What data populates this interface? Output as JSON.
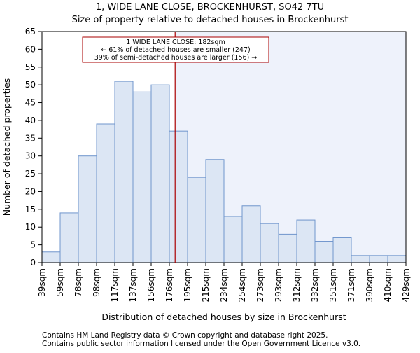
{
  "chart_data": {
    "type": "bar",
    "title": "1, WIDE LANE CLOSE, BROCKENHURST, SO42 7TU",
    "subtitle": "Size of property relative to detached houses in Brockenhurst",
    "xlabel": "Distribution of detached houses by size in Brockenhurst",
    "ylabel": "Number of detached properties",
    "bin_edges": [
      39,
      59,
      78,
      98,
      117,
      137,
      156,
      176,
      195,
      215,
      234,
      254,
      273,
      293,
      312,
      332,
      351,
      371,
      390,
      410,
      429
    ],
    "tick_labels": [
      "39sqm",
      "59sqm",
      "78sqm",
      "98sqm",
      "117sqm",
      "137sqm",
      "156sqm",
      "176sqm",
      "195sqm",
      "215sqm",
      "234sqm",
      "254sqm",
      "273sqm",
      "293sqm",
      "312sqm",
      "332sqm",
      "351sqm",
      "371sqm",
      "390sqm",
      "410sqm",
      "429sqm"
    ],
    "values": [
      3,
      14,
      30,
      39,
      51,
      48,
      50,
      37,
      24,
      29,
      13,
      16,
      11,
      8,
      12,
      6,
      7,
      2,
      2,
      2
    ],
    "ylim": [
      0,
      65
    ],
    "yticks": [
      0,
      5,
      10,
      15,
      20,
      25,
      30,
      35,
      40,
      45,
      50,
      55,
      60,
      65
    ],
    "marker_value": 182,
    "bar_color": "#dce6f4",
    "bar_edge_color": "#6f95cc",
    "highlight_bg_color": "#eef2fb",
    "marker_color": "#aa0000",
    "annotation": {
      "line1": "1 WIDE LANE CLOSE: 182sqm",
      "line2": "← 61% of detached houses are smaller (247)",
      "line3": "39% of semi-detached houses are larger (156) →"
    }
  },
  "footer": {
    "line1": "Contains HM Land Registry data © Crown copyright and database right 2025.",
    "line2": "Contains public sector information licensed under the Open Government Licence v3.0."
  }
}
